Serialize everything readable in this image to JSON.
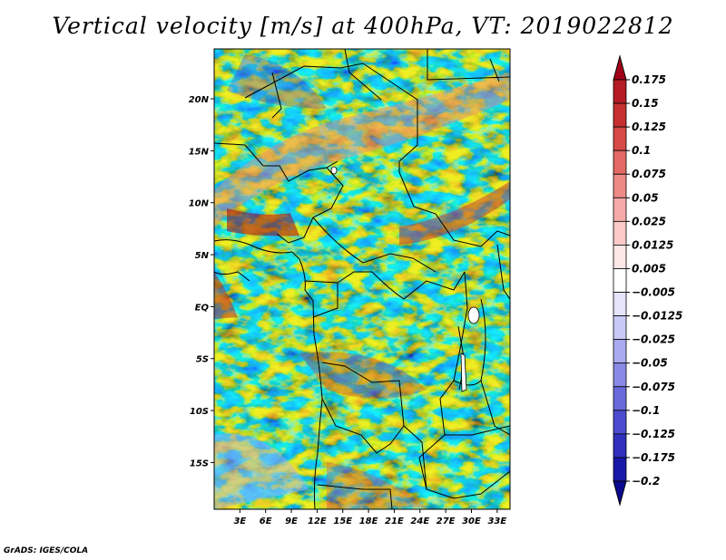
{
  "title": "Vertical velocity [m/s] at 400hPa, VT: 2019022812",
  "credit": "GrADS: IGES/COLA",
  "map": {
    "lat_labels": [
      "20N",
      "15N",
      "10N",
      "5N",
      "EQ",
      "5S",
      "10S",
      "15S"
    ],
    "lat_values": [
      20,
      15,
      10,
      5,
      0,
      -5,
      -10,
      -15
    ],
    "lon_labels": [
      "3E",
      "6E",
      "9E",
      "12E",
      "15E",
      "18E",
      "21E",
      "24E",
      "27E",
      "30E",
      "33E"
    ],
    "lon_values": [
      3,
      6,
      9,
      12,
      15,
      18,
      21,
      24,
      27,
      30,
      33
    ],
    "lon_range": [
      0,
      34.5
    ],
    "lat_range": [
      -19.5,
      24.8
    ]
  },
  "colorbar": {
    "labels": [
      "0.175",
      "0.15",
      "0.125",
      "0.1",
      "0.075",
      "0.05",
      "0.025",
      "0.0125",
      "0.005",
      "−0.005",
      "−0.0125",
      "−0.025",
      "−0.05",
      "−0.075",
      "−0.1",
      "−0.125",
      "−0.175",
      "−0.2"
    ],
    "colors": [
      "#a00018",
      "#b41b22",
      "#c6302f",
      "#d64a47",
      "#e36964",
      "#ed8a86",
      "#f5aaa8",
      "#fac9c8",
      "#fde6e6",
      "#ffffff",
      "#e4e4fb",
      "#c9c9f6",
      "#aaaaf0",
      "#8a8ae6",
      "#6a6adb",
      "#4b4bd0",
      "#3030bd",
      "#1818a8",
      "#0a0a90"
    ]
  }
}
